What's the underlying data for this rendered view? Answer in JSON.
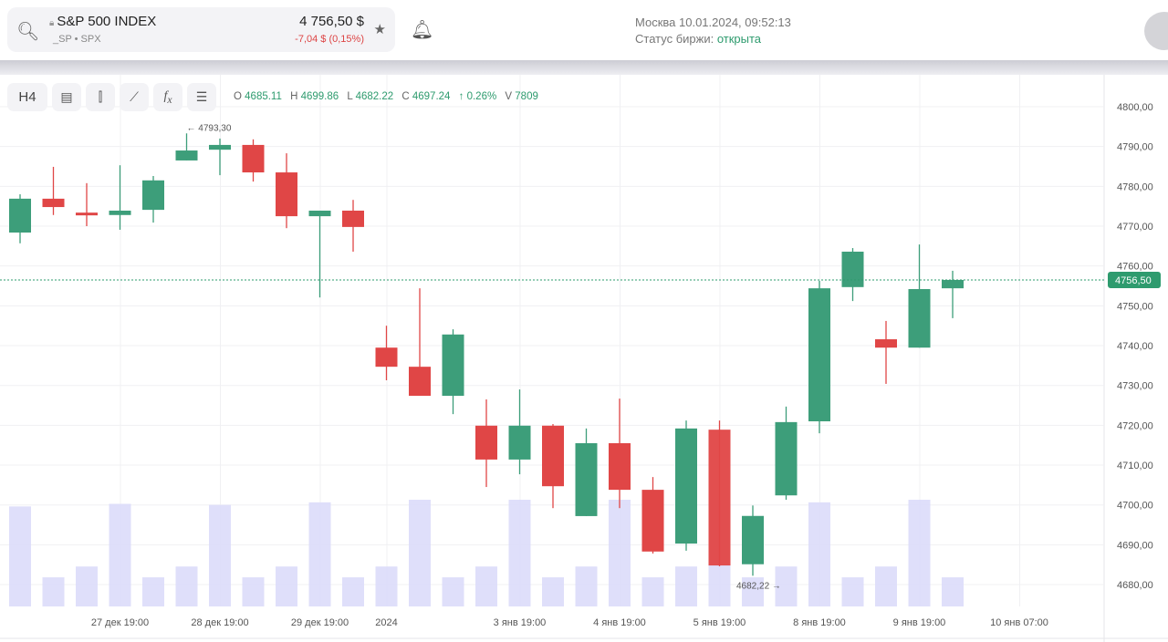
{
  "header": {
    "instrument": "S&P 500 INDEX",
    "sub": "_SP • SPX",
    "price": "4 756,50 $",
    "change": "-7,04 $ (0,15%)",
    "datetime": "Москва 10.01.2024, 09:52:13",
    "status_label": "Статус биржи:",
    "status_value": "открыта"
  },
  "toolbar": {
    "timeframe": "H4"
  },
  "ohlc": {
    "o_label": "O",
    "o": "4685.11",
    "h_label": "H",
    "h": "4699.86",
    "l_label": "L",
    "l": "4682.22",
    "c_label": "C",
    "c": "4697.24",
    "chg": "↑ 0.26%",
    "v_label": "V",
    "v": "7809"
  },
  "colors": {
    "up": "#3d9e7a",
    "down": "#e04646",
    "volume": "#dcdcfa",
    "accent": "#2e9b6e"
  },
  "chart_data": {
    "type": "candlestick",
    "ylim": [
      4676,
      4803
    ],
    "yticks": [
      4680,
      4690,
      4700,
      4710,
      4720,
      4730,
      4740,
      4750,
      4760,
      4770,
      4780,
      4790,
      4800
    ],
    "ytick_labels": [
      "4680,00",
      "4690,00",
      "4700,00",
      "4710,00",
      "4720,00",
      "4730,00",
      "4740,00",
      "4750,00",
      "4760,00",
      "4770,00",
      "4780,00",
      "4790,00",
      "4800,00"
    ],
    "current_price": 4756.5,
    "current_label": "4756,50",
    "annotations": [
      {
        "index": 5,
        "value": 4793.3,
        "text": "← 4793,30",
        "pos": "above"
      },
      {
        "index": 22,
        "value": 4682.22,
        "text": "4682,22 →",
        "pos": "below"
      }
    ],
    "xlabels": [
      {
        "index": 3,
        "text": "27 дек 19:00"
      },
      {
        "index": 6,
        "text": "28 дек 19:00"
      },
      {
        "index": 9,
        "text": "29 дек 19:00"
      },
      {
        "index": 11,
        "text": "2024"
      },
      {
        "index": 15,
        "text": "3 янв 19:00"
      },
      {
        "index": 18,
        "text": "4 янв 19:00"
      },
      {
        "index": 21,
        "text": "5 янв 19:00"
      },
      {
        "index": 24,
        "text": "8 янв 19:00"
      },
      {
        "index": 27,
        "text": "9 янв 19:00"
      },
      {
        "index": 30,
        "text": "10 янв 07:00"
      }
    ],
    "candles": [
      [
        4768.4,
        4776.9,
        4778.0,
        4765.7
      ],
      [
        4776.9,
        4774.8,
        4784.9,
        4772.8
      ],
      [
        4773.4,
        4773.0,
        4780.8,
        4770.0
      ],
      [
        4772.8,
        4773.9,
        4785.3,
        4769.1
      ],
      [
        4774.1,
        4781.5,
        4782.6,
        4770.9
      ],
      [
        4786.5,
        4789.0,
        4793.3,
        4786.5
      ],
      [
        4789.2,
        4790.4,
        4792.0,
        4782.8
      ],
      [
        4790.4,
        4783.5,
        4791.8,
        4781.2
      ],
      [
        4783.5,
        4772.5,
        4788.3,
        4769.5
      ],
      [
        4772.5,
        4773.9,
        4773.9,
        4752.1
      ],
      [
        4773.9,
        4769.8,
        4776.6,
        4763.6
      ],
      [
        4739.5,
        4734.7,
        4745.0,
        4731.3
      ],
      [
        4734.7,
        4727.4,
        4754.4,
        4727.4
      ],
      [
        4727.4,
        4742.8,
        4744.1,
        4722.8
      ],
      [
        4719.9,
        4711.4,
        4726.5,
        4704.5
      ],
      [
        4711.4,
        4719.9,
        4729.0,
        4707.7
      ],
      [
        4719.9,
        4704.7,
        4720.3,
        4699.2
      ],
      [
        4697.2,
        4715.5,
        4719.2,
        4697.2
      ],
      [
        4715.5,
        4703.8,
        4726.7,
        4699.2
      ],
      [
        4703.8,
        4688.3,
        4707.0,
        4687.8
      ],
      [
        4690.3,
        4719.2,
        4721.2,
        4688.5
      ],
      [
        4718.9,
        4684.8,
        4721.2,
        4684.6
      ],
      [
        4685.11,
        4697.24,
        4699.86,
        4682.22
      ],
      [
        4702.4,
        4720.8,
        4724.7,
        4701.3
      ],
      [
        4721.0,
        4754.4,
        4756.3,
        4718.0
      ],
      [
        4754.7,
        4763.6,
        4764.5,
        4751.2
      ],
      [
        4741.6,
        4739.5,
        4746.2,
        4730.4
      ],
      [
        4739.5,
        4754.2,
        4765.4,
        4739.5
      ],
      [
        4754.4,
        4756.5,
        4758.8,
        4746.9
      ]
    ],
    "volumes": [
      26800,
      7809,
      10700,
      27500,
      7809,
      10700,
      27200,
      7809,
      10700,
      27900,
      7809,
      10700,
      28600,
      7809,
      10700,
      28600,
      7809,
      10700,
      28600,
      7809,
      10700,
      28600,
      7809,
      10700,
      27900,
      7809,
      10700,
      28600,
      7809
    ]
  }
}
